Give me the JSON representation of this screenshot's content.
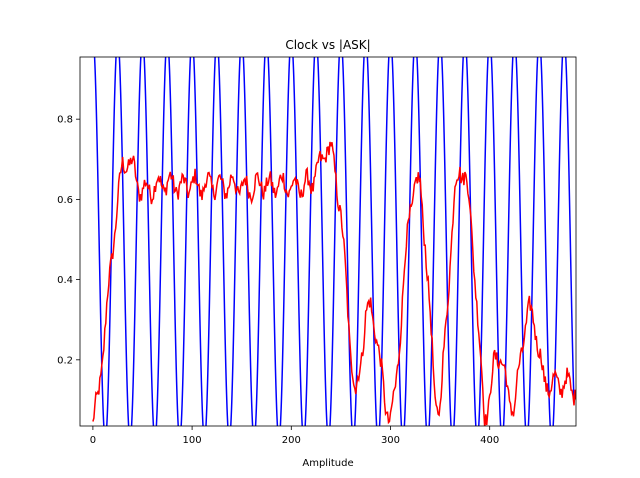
{
  "chart_data": {
    "type": "line",
    "title": "Clock vs |ASK|",
    "xlabel": "Amplitude",
    "ylabel": "",
    "xlim": [
      -13,
      487
    ],
    "ylim": [
      0.035,
      0.955
    ],
    "xticks": [
      0,
      100,
      200,
      300,
      400
    ],
    "yticks": [
      0.2,
      0.4,
      0.6,
      0.8
    ],
    "grid": false,
    "legend": "none",
    "series": [
      {
        "color": "#0000ff",
        "shape": "cosine",
        "offset": 0.5,
        "amplitude": 0.5,
        "period": 25,
        "x_range": [
          0,
          485
        ]
      },
      {
        "color": "#ff0000",
        "shape": "noisy envelope",
        "x_range": [
          0,
          487
        ],
        "x": [
          0,
          5,
          10,
          15,
          20,
          25,
          30,
          35,
          40,
          45,
          50,
          60,
          70,
          80,
          90,
          100,
          110,
          120,
          130,
          140,
          150,
          160,
          170,
          180,
          190,
          200,
          210,
          220,
          230,
          235,
          240,
          245,
          250,
          255,
          260,
          265,
          270,
          275,
          280,
          285,
          290,
          295,
          300,
          305,
          310,
          315,
          320,
          325,
          330,
          335,
          340,
          345,
          350,
          355,
          360,
          365,
          370,
          375,
          380,
          385,
          390,
          395,
          400,
          405,
          410,
          415,
          420,
          425,
          430,
          435,
          440,
          445,
          450,
          455,
          460,
          465,
          470,
          475,
          480,
          487
        ],
        "y": [
          0.04,
          0.1,
          0.22,
          0.35,
          0.48,
          0.6,
          0.68,
          0.7,
          0.68,
          0.64,
          0.62,
          0.63,
          0.64,
          0.64,
          0.63,
          0.64,
          0.63,
          0.64,
          0.63,
          0.64,
          0.63,
          0.63,
          0.64,
          0.63,
          0.64,
          0.63,
          0.63,
          0.64,
          0.69,
          0.73,
          0.72,
          0.66,
          0.56,
          0.4,
          0.22,
          0.1,
          0.2,
          0.31,
          0.33,
          0.28,
          0.18,
          0.09,
          0.05,
          0.12,
          0.28,
          0.45,
          0.58,
          0.64,
          0.63,
          0.5,
          0.3,
          0.1,
          0.08,
          0.25,
          0.45,
          0.62,
          0.68,
          0.66,
          0.58,
          0.42,
          0.22,
          0.06,
          0.1,
          0.2,
          0.22,
          0.16,
          0.1,
          0.08,
          0.18,
          0.28,
          0.32,
          0.3,
          0.22,
          0.14,
          0.14,
          0.14,
          0.14,
          0.14,
          0.14,
          0.12
        ]
      }
    ]
  }
}
